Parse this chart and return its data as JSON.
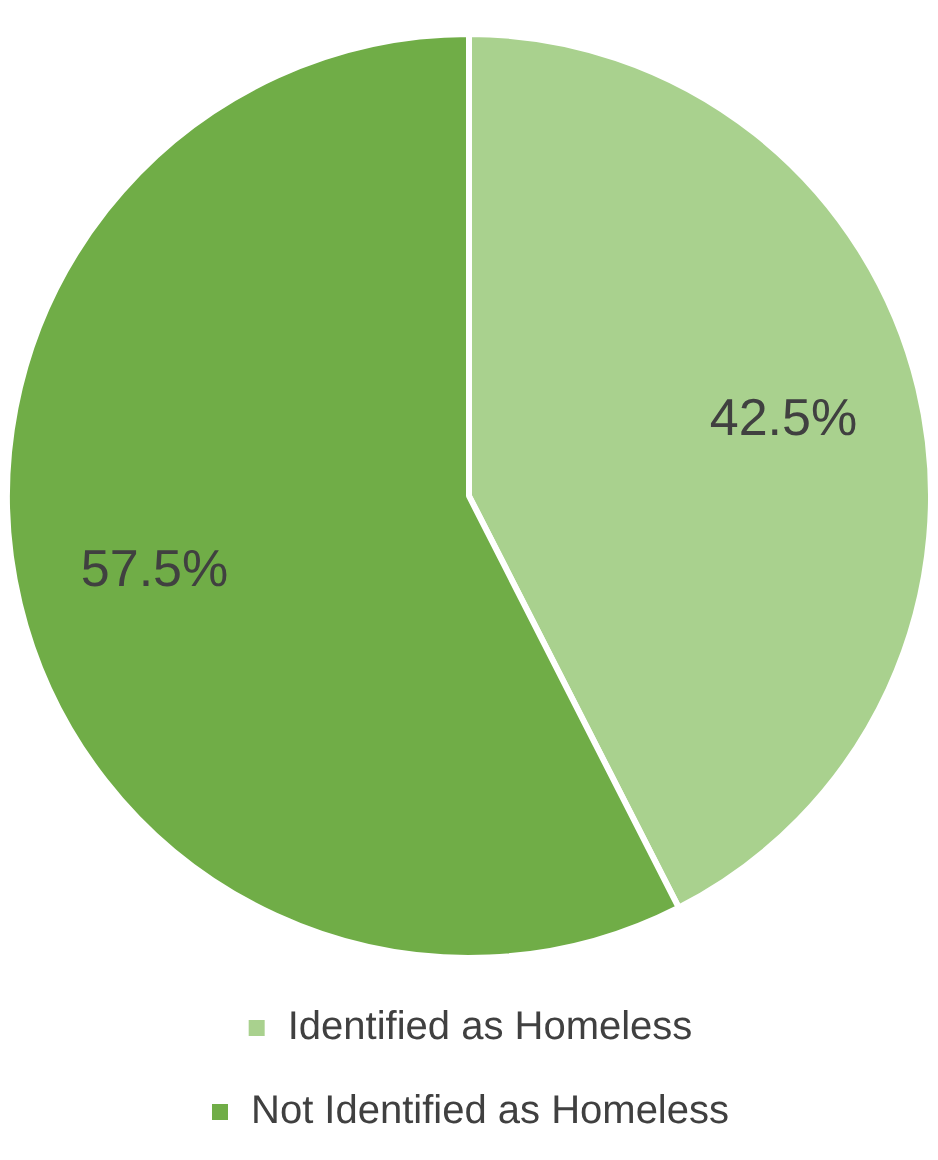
{
  "chart_data": {
    "type": "pie",
    "categories": [
      "Identified as Homeless",
      "Not Identified as Homeless"
    ],
    "values": [
      42.5,
      57.5
    ],
    "colors": [
      "#a9d18e",
      "#70ad47"
    ],
    "value_labels": [
      "42.5%",
      "57.5%"
    ],
    "legend": "bottom"
  }
}
